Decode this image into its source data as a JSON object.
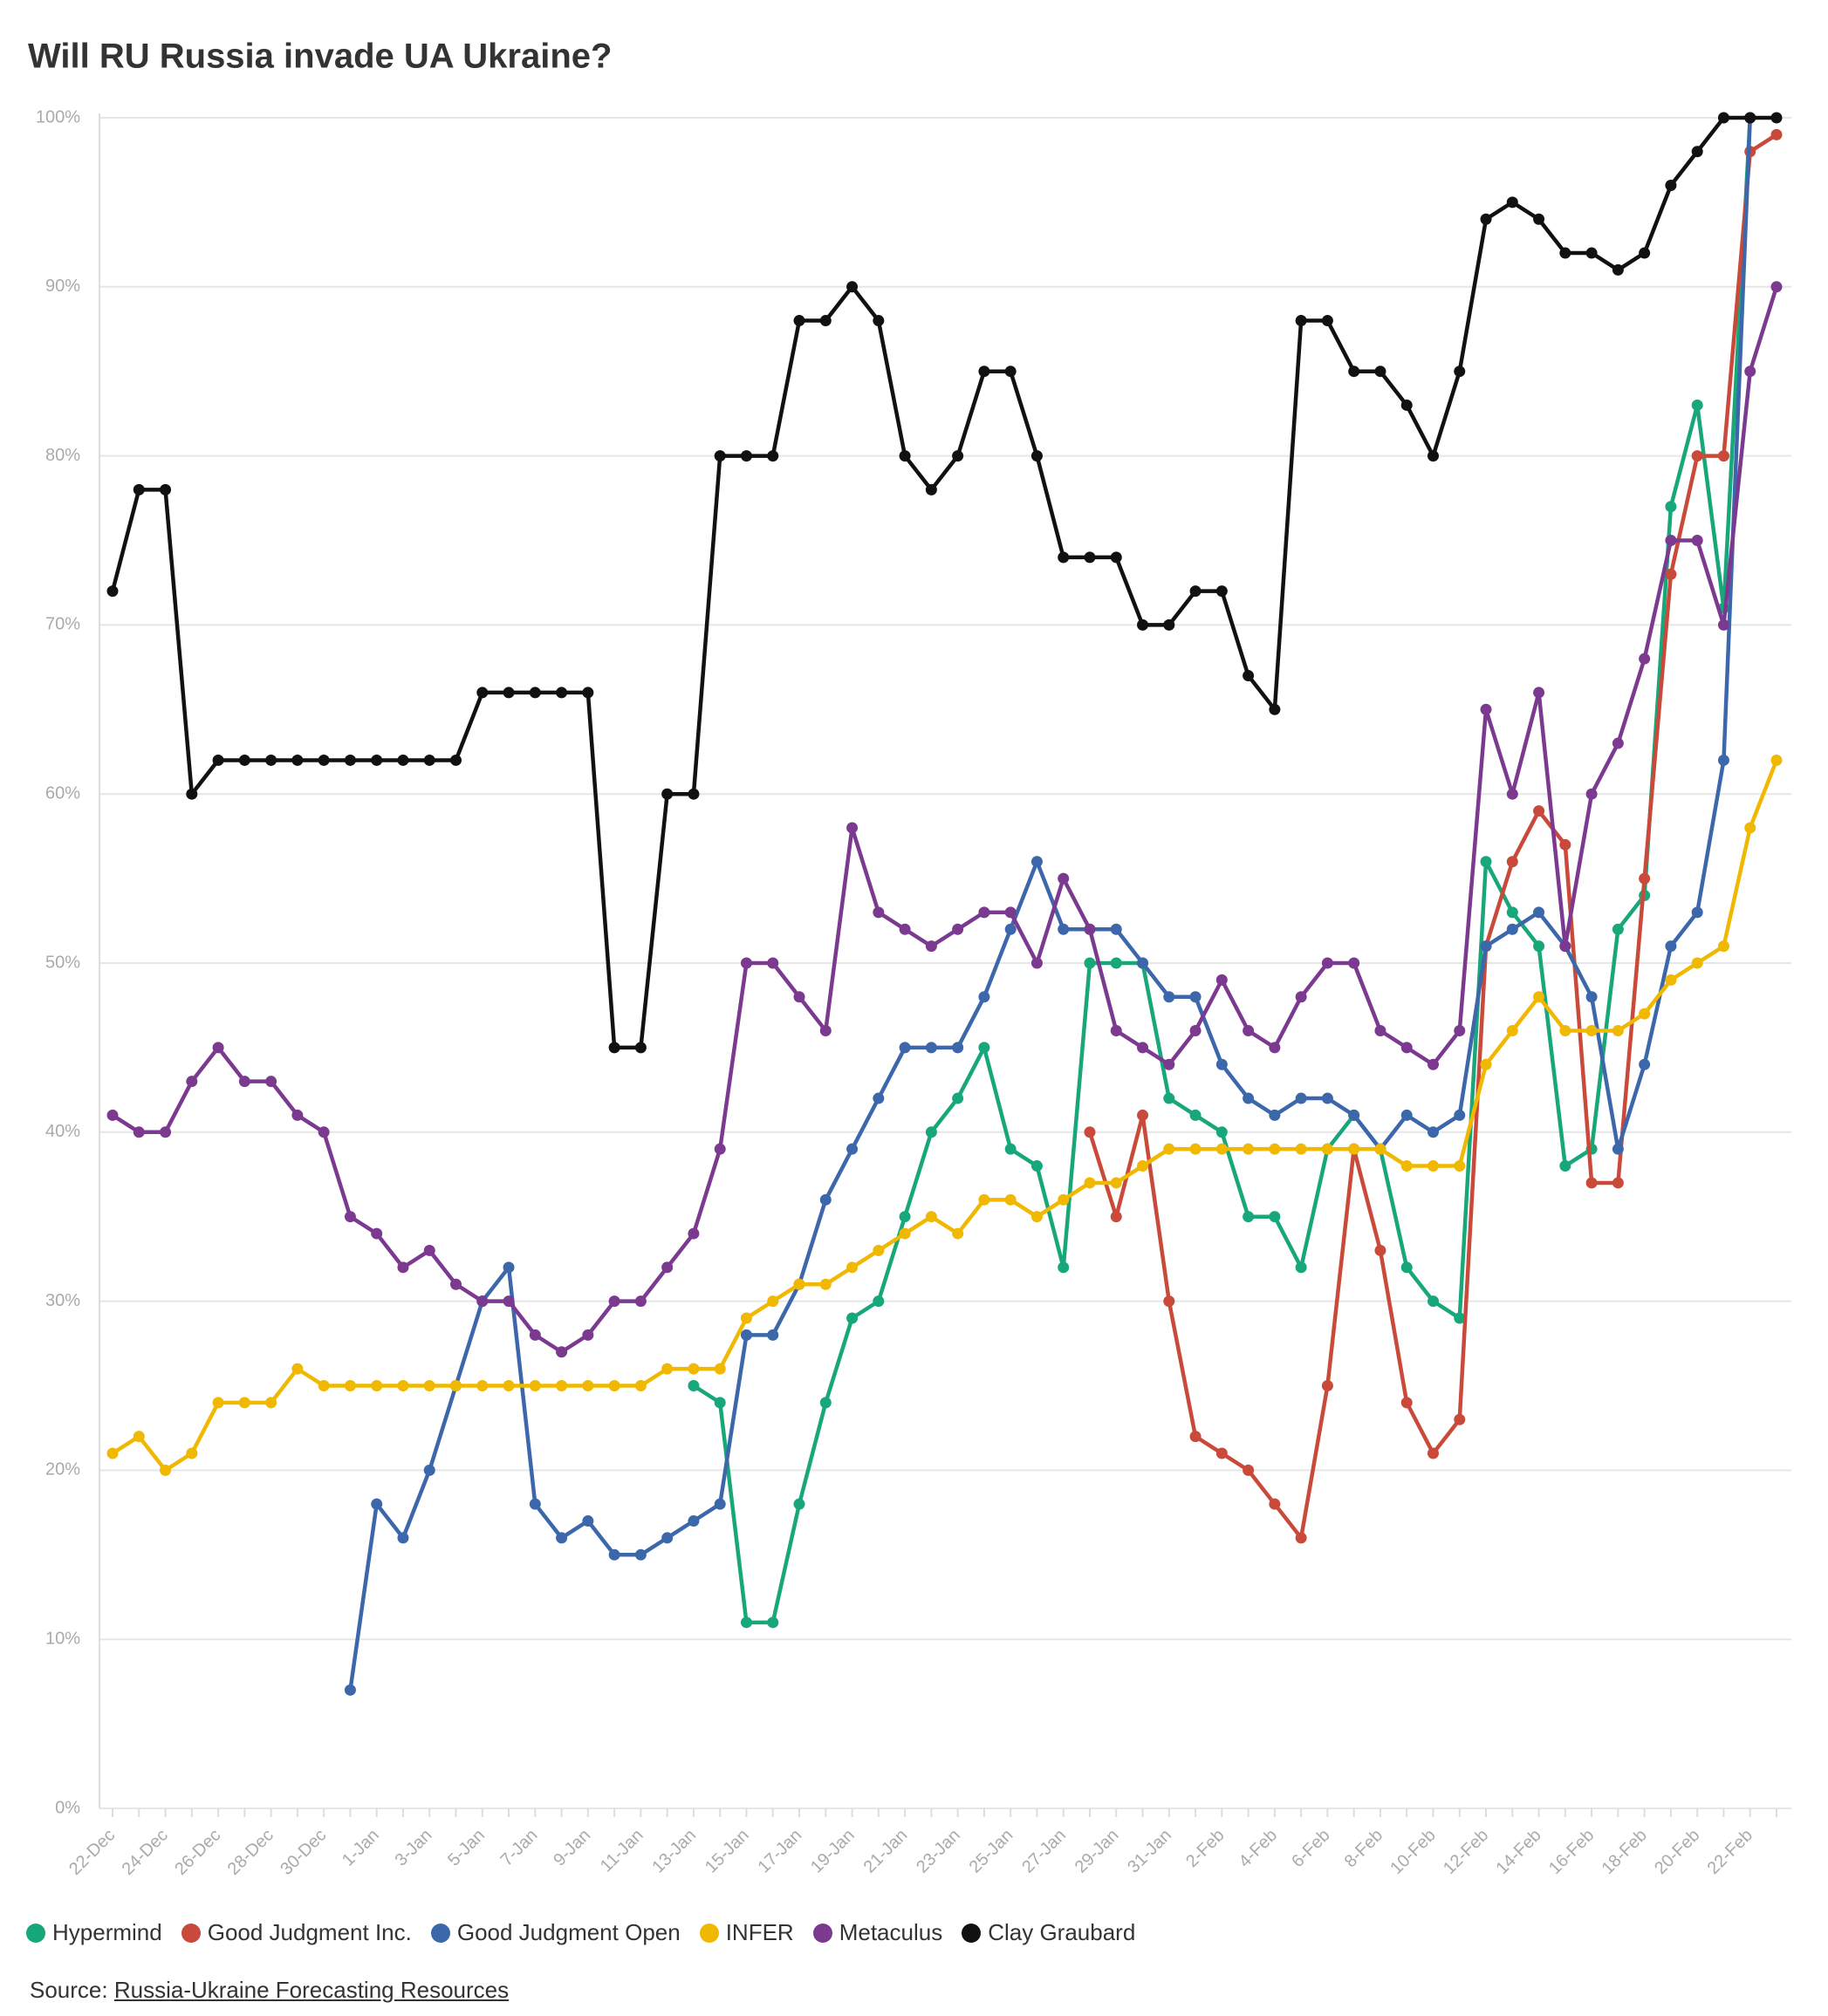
{
  "chart_data": {
    "type": "line",
    "title": "Will RU Russia invade UA Ukraine?",
    "categories": [
      "22-Dec",
      null,
      "24-Dec",
      null,
      "26-Dec",
      null,
      "28-Dec",
      null,
      "30-Dec",
      null,
      "1-Jan",
      null,
      "3-Jan",
      null,
      "5-Jan",
      null,
      "7-Jan",
      null,
      "9-Jan",
      null,
      "11-Jan",
      null,
      "13-Jan",
      null,
      "15-Jan",
      null,
      "17-Jan",
      null,
      "19-Jan",
      null,
      "21-Jan",
      null,
      "23-Jan",
      null,
      "25-Jan",
      null,
      "27-Jan",
      null,
      "29-Jan",
      null,
      "31-Jan",
      null,
      "2-Feb",
      null,
      "4-Feb",
      null,
      "6-Feb",
      null,
      "8-Feb",
      null,
      "10-Feb",
      null,
      "12-Feb",
      null,
      "14-Feb",
      null,
      "16-Feb",
      null,
      "18-Feb",
      null,
      "20-Feb",
      null,
      "22-Feb",
      null
    ],
    "series": [
      {
        "name": "Hypermind",
        "color": "#17a77a",
        "values": [
          null,
          null,
          null,
          null,
          null,
          null,
          null,
          null,
          null,
          null,
          null,
          null,
          null,
          null,
          null,
          null,
          null,
          null,
          null,
          null,
          null,
          null,
          25,
          24,
          11,
          11,
          18,
          24,
          29,
          30,
          35,
          40,
          42,
          45,
          39,
          38,
          32,
          50,
          50,
          50,
          42,
          41,
          40,
          35,
          35,
          32,
          39,
          41,
          39,
          32,
          30,
          29,
          56,
          53,
          51,
          38,
          39,
          52,
          54,
          77,
          83,
          71,
          100,
          null
        ]
      },
      {
        "name": "Good Judgment Inc.",
        "color": "#c94a3a",
        "values": [
          null,
          null,
          null,
          null,
          null,
          null,
          null,
          null,
          null,
          null,
          null,
          null,
          null,
          null,
          null,
          null,
          null,
          null,
          null,
          null,
          null,
          null,
          null,
          null,
          null,
          null,
          null,
          null,
          null,
          null,
          null,
          null,
          null,
          null,
          null,
          null,
          null,
          40,
          35,
          41,
          30,
          22,
          21,
          20,
          18,
          16,
          25,
          39,
          33,
          24,
          21,
          23,
          51,
          56,
          59,
          57,
          37,
          37,
          55,
          73,
          80,
          80,
          98,
          99
        ]
      },
      {
        "name": "Good Judgment Open",
        "color": "#3c67aa",
        "values": [
          null,
          null,
          null,
          null,
          null,
          null,
          null,
          null,
          null,
          7,
          18,
          16,
          20,
          25,
          30,
          32,
          18,
          16,
          17,
          15,
          15,
          16,
          17,
          18,
          28,
          28,
          31,
          36,
          39,
          42,
          45,
          45,
          45,
          48,
          52,
          56,
          52,
          52,
          52,
          50,
          48,
          48,
          44,
          42,
          41,
          42,
          42,
          41,
          39,
          41,
          40,
          41,
          51,
          52,
          53,
          51,
          48,
          39,
          44,
          51,
          53,
          62,
          100,
          null
        ]
      },
      {
        "name": "INFER",
        "color": "#f0b800",
        "values": [
          21,
          22,
          20,
          21,
          24,
          24,
          24,
          26,
          25,
          25,
          25,
          25,
          25,
          25,
          25,
          25,
          25,
          25,
          25,
          25,
          25,
          26,
          26,
          26,
          29,
          30,
          31,
          31,
          32,
          33,
          34,
          35,
          34,
          36,
          36,
          35,
          36,
          37,
          37,
          38,
          39,
          39,
          39,
          39,
          39,
          39,
          39,
          39,
          39,
          38,
          38,
          38,
          44,
          46,
          48,
          46,
          46,
          46,
          47,
          49,
          50,
          51,
          58,
          62
        ]
      },
      {
        "name": "Metaculus",
        "color": "#7b3a90",
        "values": [
          41,
          40,
          40,
          43,
          45,
          43,
          43,
          41,
          40,
          35,
          34,
          32,
          33,
          31,
          30,
          30,
          28,
          27,
          28,
          30,
          30,
          32,
          34,
          39,
          50,
          50,
          48,
          46,
          58,
          53,
          52,
          51,
          52,
          53,
          53,
          50,
          55,
          52,
          46,
          45,
          44,
          46,
          49,
          46,
          45,
          48,
          50,
          50,
          46,
          45,
          44,
          46,
          65,
          60,
          66,
          51,
          60,
          63,
          68,
          75,
          75,
          70,
          85,
          90
        ]
      },
      {
        "name": "Clay Graubard",
        "color": "#111111",
        "values": [
          72,
          78,
          78,
          60,
          62,
          62,
          62,
          62,
          62,
          62,
          62,
          62,
          62,
          62,
          66,
          66,
          66,
          66,
          66,
          45,
          45,
          60,
          60,
          80,
          80,
          80,
          88,
          88,
          90,
          88,
          80,
          78,
          80,
          85,
          85,
          80,
          74,
          74,
          74,
          70,
          70,
          72,
          72,
          67,
          65,
          88,
          88,
          85,
          85,
          83,
          80,
          85,
          94,
          95,
          94,
          92,
          92,
          91,
          92,
          96,
          98,
          100,
          100,
          100
        ]
      }
    ],
    "ylim": [
      0,
      100
    ],
    "yticks": [
      {
        "value": 0,
        "label": "0%"
      },
      {
        "value": 10,
        "label": "10%"
      },
      {
        "value": 20,
        "label": "20%"
      },
      {
        "value": 30,
        "label": "30%"
      },
      {
        "value": 40,
        "label": "40%"
      },
      {
        "value": 50,
        "label": "50%"
      },
      {
        "value": 60,
        "label": "60%"
      },
      {
        "value": 70,
        "label": "70%"
      },
      {
        "value": 80,
        "label": "80%"
      },
      {
        "value": 90,
        "label": "90%"
      },
      {
        "value": 100,
        "label": "100%"
      }
    ],
    "grid": true,
    "source_label": "Source:",
    "source_link": "Russia-Ukraine Forecasting Resources"
  }
}
